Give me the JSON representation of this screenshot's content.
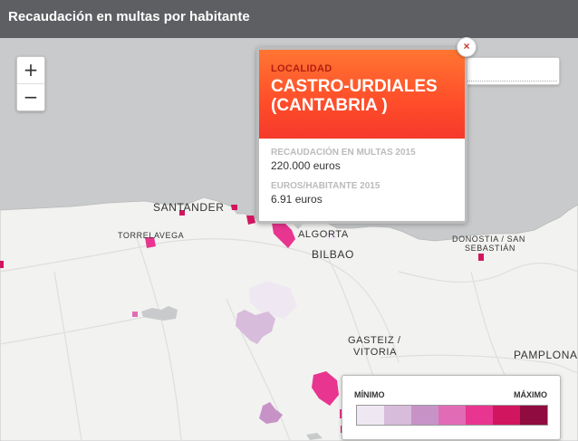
{
  "title": "Recaudación en multas por habitante",
  "zoom": {
    "in": "+",
    "out": "−"
  },
  "popup": {
    "close": "×",
    "label": "LOCALIDAD",
    "name": "CASTRO-URDIALES (CANTABRIA )",
    "field1_label": "RECAUDACIÓN EN MULTAS 2015",
    "field1_value": "220.000 euros",
    "field2_label": "EUROS/HABITANTE 2015",
    "field2_value": "6.91 euros"
  },
  "search": {
    "icon": "search-icon",
    "value": "",
    "placeholder": ""
  },
  "legend": {
    "min_label": "MÍNIMO",
    "max_label": "MÁXIMO",
    "colors": [
      "#efe8f2",
      "#d8bcdb",
      "#c793c7",
      "#e26bb5",
      "#e8358f",
      "#d2155f",
      "#900b3f"
    ]
  },
  "places": {
    "santander": "SANTANDER",
    "torrelavega": "TORRELAVEGA",
    "algorta": "ALGORTA",
    "bilbao": "BILBAO",
    "donostia_1": "DONOSTIA / SAN",
    "donostia_2": "SEBASTIÁN",
    "gasteiz_1": "GASTEIZ /",
    "gasteiz_2": "VITORIA",
    "pamplona": "PAMPLONA"
  },
  "colors": {
    "sea": "#c8cacc",
    "land": "#f2f2f0",
    "header": "#5d5f62"
  }
}
